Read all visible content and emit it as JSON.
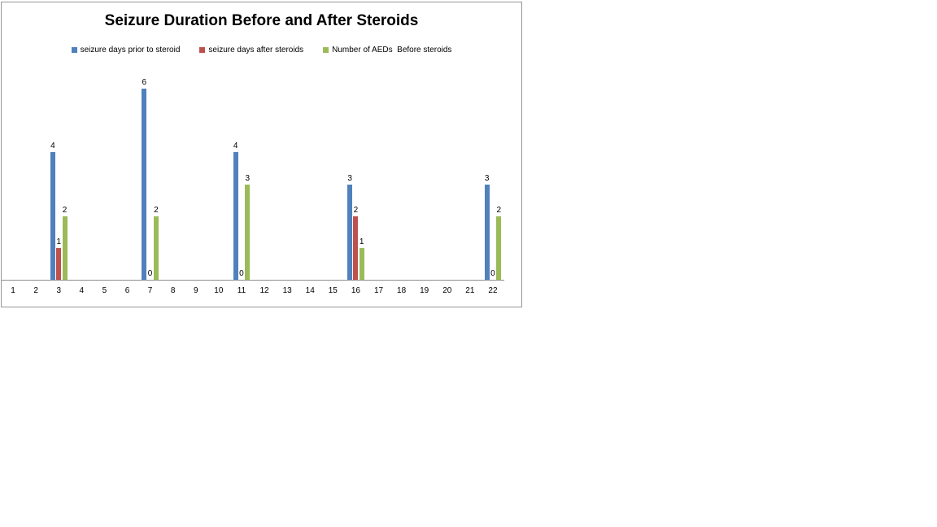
{
  "page": {
    "background": "#ffffff"
  },
  "chart": {
    "title": "Seizure Duration Before and After Steroids",
    "border_color": "#969696",
    "axis_color": "#8e8e8e"
  },
  "chart_data": {
    "type": "bar",
    "title": "Seizure Duration Before and After Steroids",
    "categories": [
      1,
      2,
      3,
      4,
      5,
      6,
      7,
      8,
      9,
      10,
      11,
      12,
      13,
      14,
      15,
      16,
      17,
      18,
      19,
      20,
      21,
      22
    ],
    "series": [
      {
        "name": "seizure days prior to steroid",
        "color": "#4F81BD",
        "values": [
          null,
          null,
          4,
          null,
          null,
          null,
          6,
          null,
          null,
          null,
          4,
          null,
          null,
          null,
          null,
          3,
          null,
          null,
          null,
          null,
          null,
          3
        ]
      },
      {
        "name": "seizure days after steroids",
        "color": "#C0504D",
        "values": [
          null,
          null,
          1,
          null,
          null,
          null,
          0,
          null,
          null,
          null,
          0,
          null,
          null,
          null,
          null,
          2,
          null,
          null,
          null,
          null,
          null,
          0
        ]
      },
      {
        "name": "Number of AEDs  Before steroids",
        "color": "#9BBB59",
        "values": [
          null,
          null,
          2,
          null,
          null,
          null,
          2,
          null,
          null,
          null,
          3,
          null,
          null,
          null,
          null,
          1,
          null,
          null,
          null,
          null,
          null,
          2
        ]
      }
    ],
    "ylim": [
      0,
      7
    ],
    "xlabel": "",
    "ylabel": "",
    "grid": false,
    "legend_position": "top",
    "data_labels": true
  }
}
